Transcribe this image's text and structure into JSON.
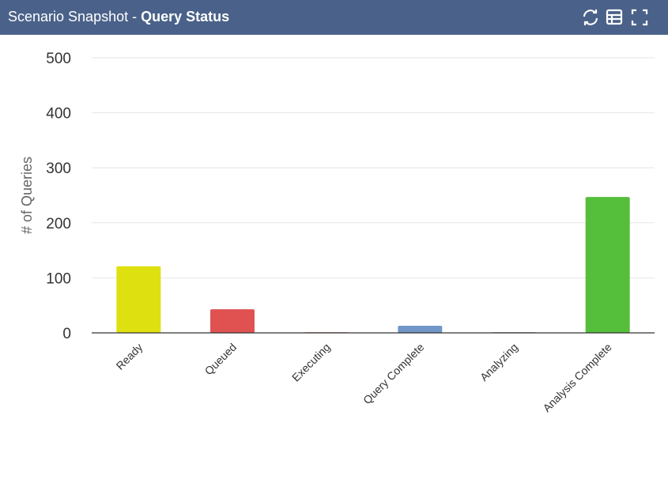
{
  "header": {
    "prefix": "Scenario Snapshot -",
    "title": "Query Status"
  },
  "chart_data": {
    "type": "bar",
    "y_label": "# of Queries",
    "categories": [
      "Ready",
      "Queued",
      "Executing",
      "Query Complete",
      "Analyzing",
      "Analysis Complete"
    ],
    "values": [
      121,
      43,
      1,
      13,
      1,
      247
    ],
    "colors": [
      "#dfe00f",
      "#e05252",
      "#d64545",
      "#7097c8",
      "#5a6e7f",
      "#55bf3b"
    ],
    "ylim": [
      0,
      500
    ],
    "yticks": [
      0,
      100,
      200,
      300,
      400,
      500
    ],
    "grid": true
  }
}
